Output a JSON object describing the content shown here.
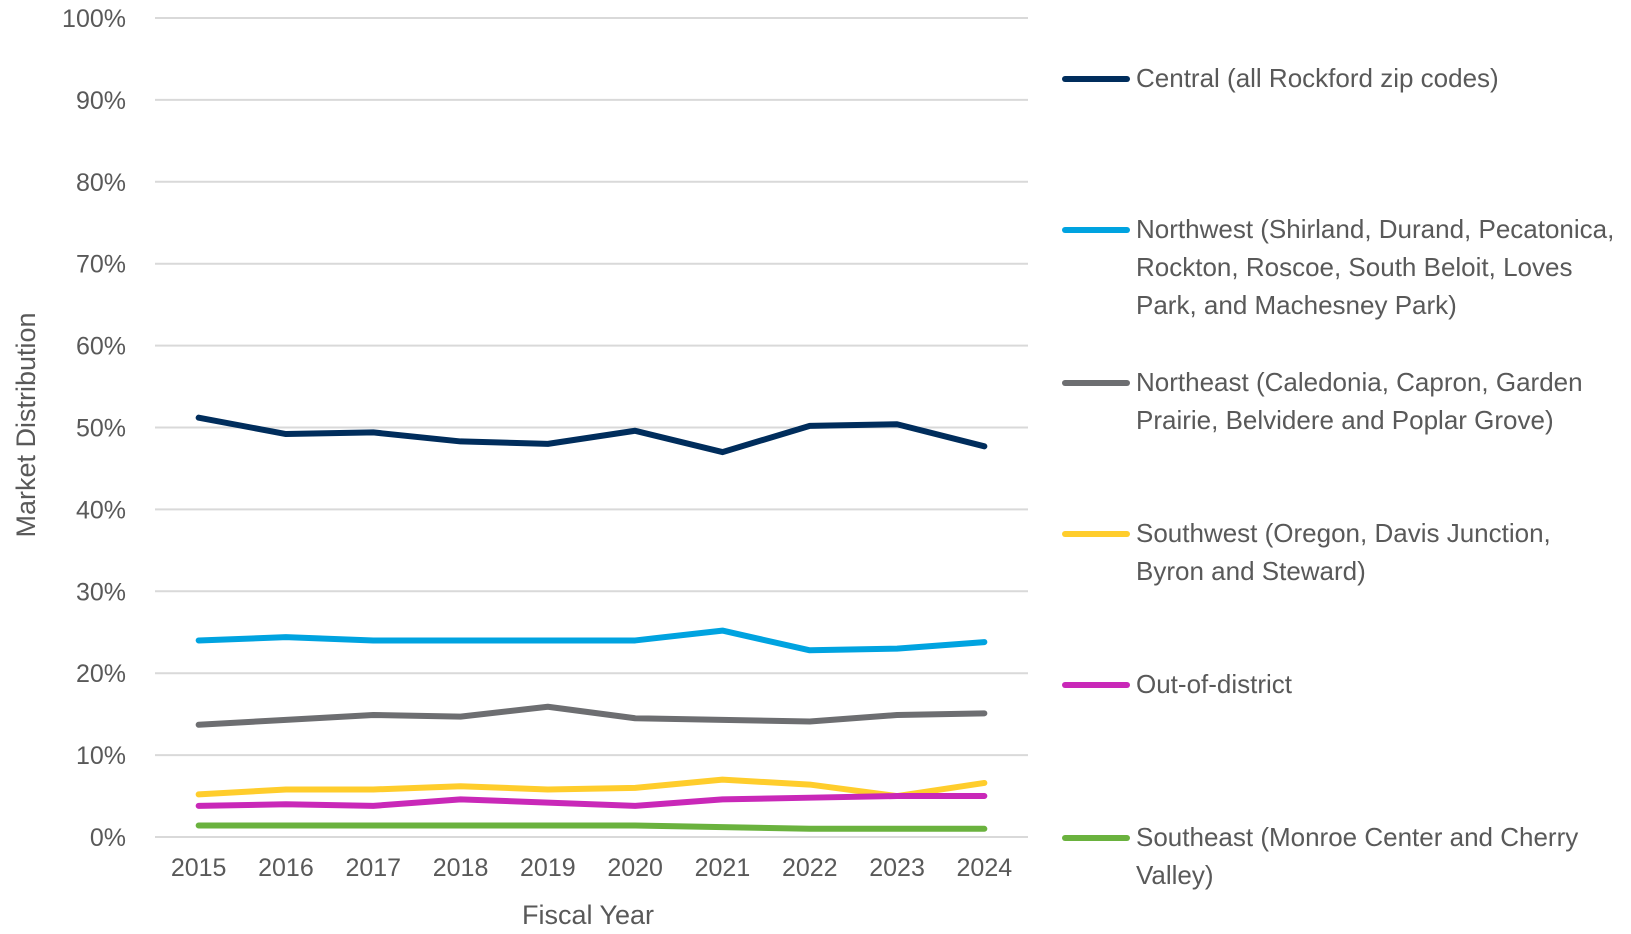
{
  "chart_data": {
    "type": "line",
    "title": "",
    "xlabel": "Fiscal Year",
    "ylabel": "Market Distribution",
    "ylim": [
      0,
      100
    ],
    "yticks": [
      "0%",
      "10%",
      "20%",
      "30%",
      "40%",
      "50%",
      "60%",
      "70%",
      "80%",
      "90%",
      "100%"
    ],
    "grid": true,
    "legend_position": "right",
    "categories": [
      "2015",
      "2016",
      "2017",
      "2018",
      "2019",
      "2020",
      "2021",
      "2022",
      "2023",
      "2024"
    ],
    "series": [
      {
        "name": "Central (all Rockford zip codes)",
        "color": "#002d5c",
        "values": [
          51.2,
          49.2,
          49.4,
          48.3,
          48.0,
          49.6,
          47.0,
          50.2,
          50.4,
          47.7
        ]
      },
      {
        "name": "Northwest (Shirland, Durand, Pecatonica, Rockton, Roscoe, South Beloit, Loves Park, and Machesney Park)",
        "color": "#00a3e0",
        "values": [
          24.0,
          24.4,
          24.0,
          24.0,
          24.0,
          24.0,
          25.2,
          22.8,
          23.0,
          23.8
        ]
      },
      {
        "name": "Northeast (Caledonia, Capron, Garden Prairie, Belvidere and Poplar Grove)",
        "color": "#6d6e71",
        "values": [
          13.7,
          14.3,
          14.9,
          14.7,
          15.9,
          14.5,
          14.3,
          14.1,
          14.9,
          15.1
        ]
      },
      {
        "name": "Southwest (Oregon, Davis Junction, Byron and Steward)",
        "color": "#ffcd2c",
        "values": [
          5.2,
          5.8,
          5.8,
          6.2,
          5.8,
          6.0,
          7.0,
          6.4,
          5.0,
          6.6
        ]
      },
      {
        "name": "Out-of-district",
        "color": "#c928b8",
        "values": [
          3.8,
          4.0,
          3.8,
          4.6,
          4.2,
          3.8,
          4.6,
          4.8,
          5.0,
          5.0
        ]
      },
      {
        "name": "Southeast (Monroe Center and Cherry Valley)",
        "color": "#6ab23e",
        "values": [
          1.4,
          1.4,
          1.4,
          1.4,
          1.4,
          1.4,
          1.2,
          1.0,
          1.0,
          1.0
        ]
      }
    ]
  }
}
